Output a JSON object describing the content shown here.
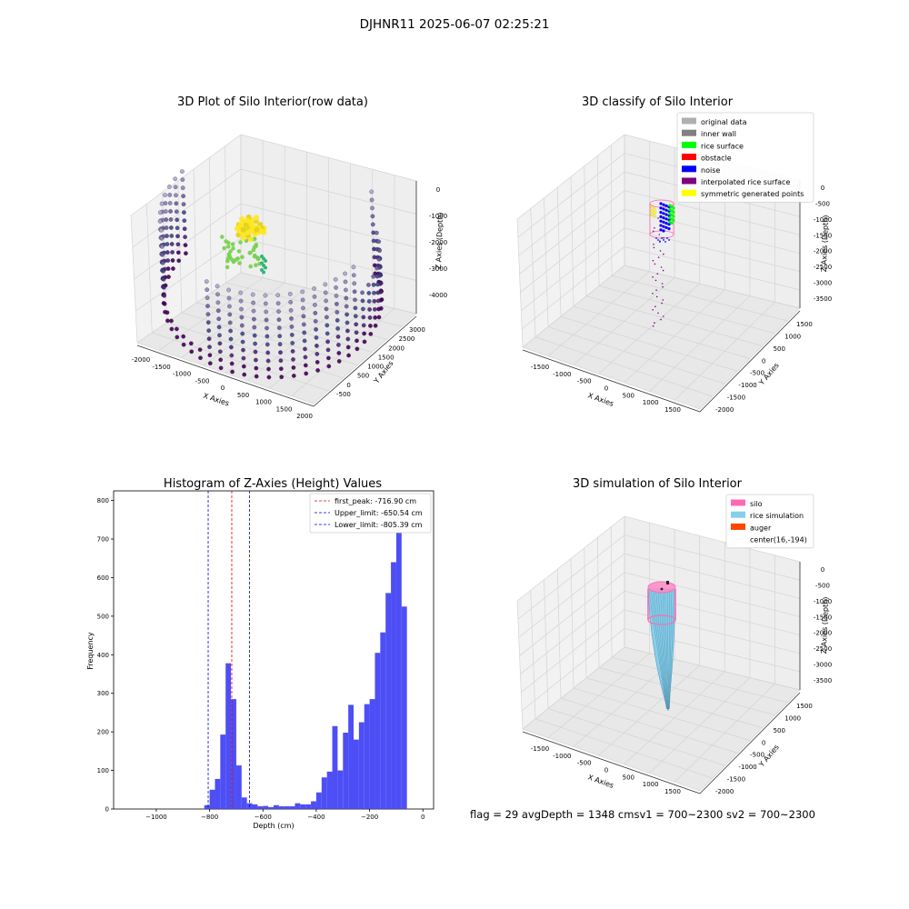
{
  "figure": {
    "suptitle": "DJHNR11 2025-06-07 02:25:21",
    "footer": "flag = 29   avgDepth = 1348 cmsv1 = 700~2300  sv2 = 700~2300"
  },
  "chart_data": [
    {
      "type": "scatter",
      "title": "3D Plot of Silo Interior(row data)",
      "xlabel": "X Axies",
      "ylabel": "Y Axies",
      "zlabel": "Z Axies (Depth)",
      "xticks": [
        "-2000",
        "-1500",
        "-1000",
        "-500",
        "0",
        "500",
        "1000",
        "1500",
        "2000"
      ],
      "yticks": [
        "-500",
        "0",
        "500",
        "1000",
        "1500",
        "2000",
        "2500",
        "3000"
      ],
      "zticks": [
        "0",
        "-1000",
        "-2000",
        "-3000",
        "-4000"
      ],
      "xlim": [
        -2000,
        2000
      ],
      "ylim": [
        -700,
        3200
      ],
      "zlim": [
        -4500,
        0
      ],
      "colormap": "viridis",
      "grid": true
    },
    {
      "type": "scatter",
      "title": "3D classify of Silo Interior",
      "xlabel": "X Axies",
      "ylabel": "Y Axies",
      "zlabel": "Z Axies (Depth)",
      "xticks": [
        "-1500",
        "-1000",
        "-500",
        "0",
        "500",
        "1000",
        "1500"
      ],
      "yticks": [
        "-2000",
        "-1500",
        "-1000",
        "-500",
        "0",
        "500",
        "1000",
        "1500"
      ],
      "zticks": [
        "0",
        "-500",
        "-1000",
        "-1500",
        "-2000",
        "-2500",
        "-3000",
        "-3500"
      ],
      "legend": [
        {
          "label": "original data",
          "color": "#b0b0b0"
        },
        {
          "label": "inner wall",
          "color": "#808080"
        },
        {
          "label": "rice surface",
          "color": "#00ff00"
        },
        {
          "label": "obstacle",
          "color": "#ff0000"
        },
        {
          "label": "noise",
          "color": "#0000ff"
        },
        {
          "label": "interpolated rice surface",
          "color": "#800080"
        },
        {
          "label": "symmetric generated points",
          "color": "#ffff00"
        }
      ],
      "legend_position": "top-right",
      "grid": true
    },
    {
      "type": "bar",
      "title": "Histogram of Z-Axies (Height) Values",
      "xlabel": "Depth (cm)",
      "ylabel": "Frequency",
      "xlim": [
        -1160,
        40
      ],
      "ylim": [
        0,
        825
      ],
      "xticks": [
        -1000,
        -800,
        -600,
        -400,
        -200,
        0
      ],
      "yticks": [
        0,
        100,
        200,
        300,
        400,
        500,
        600,
        700,
        800
      ],
      "bin_width": 20,
      "bins": [
        {
          "x0": -820,
          "count": 10
        },
        {
          "x0": -800,
          "count": 50
        },
        {
          "x0": -780,
          "count": 78
        },
        {
          "x0": -760,
          "count": 193
        },
        {
          "x0": -740,
          "count": 378
        },
        {
          "x0": -720,
          "count": 285
        },
        {
          "x0": -700,
          "count": 113
        },
        {
          "x0": -680,
          "count": 30
        },
        {
          "x0": -660,
          "count": 15
        },
        {
          "x0": -640,
          "count": 12
        },
        {
          "x0": -620,
          "count": 7
        },
        {
          "x0": -600,
          "count": 8
        },
        {
          "x0": -580,
          "count": 5
        },
        {
          "x0": -560,
          "count": 10
        },
        {
          "x0": -540,
          "count": 7
        },
        {
          "x0": -520,
          "count": 7
        },
        {
          "x0": -500,
          "count": 7
        },
        {
          "x0": -480,
          "count": 15
        },
        {
          "x0": -460,
          "count": 12
        },
        {
          "x0": -440,
          "count": 12
        },
        {
          "x0": -420,
          "count": 20
        },
        {
          "x0": -400,
          "count": 43
        },
        {
          "x0": -380,
          "count": 82
        },
        {
          "x0": -360,
          "count": 97
        },
        {
          "x0": -340,
          "count": 215
        },
        {
          "x0": -320,
          "count": 100
        },
        {
          "x0": -300,
          "count": 198
        },
        {
          "x0": -280,
          "count": 270
        },
        {
          "x0": -260,
          "count": 180
        },
        {
          "x0": -240,
          "count": 225
        },
        {
          "x0": -220,
          "count": 272
        },
        {
          "x0": -200,
          "count": 285
        },
        {
          "x0": -180,
          "count": 405
        },
        {
          "x0": -160,
          "count": 458
        },
        {
          "x0": -140,
          "count": 560
        },
        {
          "x0": -120,
          "count": 640
        },
        {
          "x0": -100,
          "count": 780
        },
        {
          "x0": -80,
          "count": 525
        }
      ],
      "bar_color": "#4545f5",
      "vlines": [
        {
          "label": "first_peak: -716.90 cm",
          "x": -716.9,
          "color": "#e00000"
        },
        {
          "label": "Upper_limit: -650.54 cm",
          "x": -650.54,
          "color": "#0000e0"
        },
        {
          "label": "Lower_limit: -805.39 cm",
          "x": -805.39,
          "color": "#0000e0"
        }
      ],
      "legend_position": "top-right"
    },
    {
      "type": "surface",
      "title": "3D simulation of Silo Interior",
      "xlabel": "X Axies",
      "ylabel": "Y Axies",
      "zlabel": "Z Axies (Depth)",
      "xticks": [
        "-1500",
        "-1000",
        "-500",
        "0",
        "500",
        "1000",
        "1500"
      ],
      "yticks": [
        "-2000",
        "-1500",
        "-1000",
        "-500",
        "0",
        "500",
        "1000",
        "1500"
      ],
      "zticks": [
        "0",
        "-500",
        "-1000",
        "-1500",
        "-2000",
        "-2500",
        "-3000",
        "-3500"
      ],
      "legend": [
        {
          "label": "silo",
          "color": "#ff69b4"
        },
        {
          "label": "rice simulation",
          "color": "#87ceeb"
        },
        {
          "label": "auger",
          "color": "#ff4500"
        },
        {
          "label": "center(16,-194)",
          "color": ""
        }
      ],
      "legend_position": "top-right",
      "grid": true
    }
  ]
}
